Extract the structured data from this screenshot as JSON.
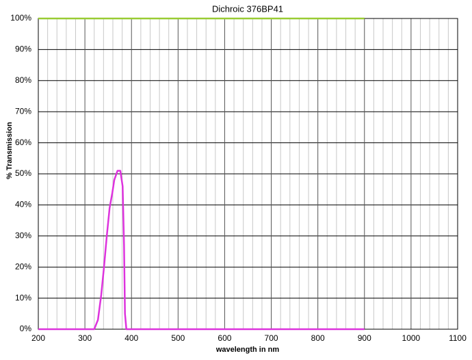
{
  "chart_data": {
    "type": "line",
    "title": "Dichroic 376BP41",
    "xlabel": "wavelength in nm",
    "ylabel": "% Transmission",
    "xlim": [
      200,
      1100
    ],
    "xticks": [
      200,
      300,
      400,
      500,
      600,
      700,
      800,
      900,
      1000,
      1100
    ],
    "ylim": [
      0,
      100
    ],
    "yticks": [
      {
        "value": 0,
        "label": "0%"
      },
      {
        "value": 10,
        "label": "10%"
      },
      {
        "value": 20,
        "label": "20%"
      },
      {
        "value": 30,
        "label": "30%"
      },
      {
        "value": 40,
        "label": "40%"
      },
      {
        "value": 50,
        "label": "50%"
      },
      {
        "value": 60,
        "label": "60%"
      },
      {
        "value": 70,
        "label": "70%"
      },
      {
        "value": 80,
        "label": "80%"
      },
      {
        "value": 90,
        "label": "90%"
      },
      {
        "value": 100,
        "label": "100%"
      }
    ],
    "grid": true,
    "series": [
      {
        "color": "#99cc33",
        "x": [
          200,
          900
        ],
        "values": [
          100,
          100
        ]
      },
      {
        "color": "#dd33dd",
        "x": [
          200,
          320,
          328,
          335,
          341,
          347,
          353,
          359,
          363,
          370,
          376,
          381,
          384,
          386,
          389,
          900
        ],
        "values": [
          0,
          0,
          3,
          11,
          20,
          30,
          39,
          44,
          48,
          51,
          51,
          46,
          27,
          5,
          0,
          0
        ]
      }
    ]
  }
}
